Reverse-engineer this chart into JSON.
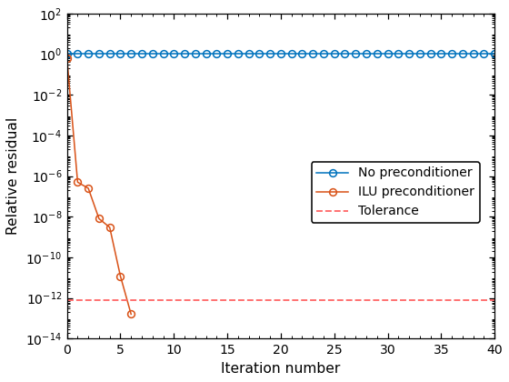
{
  "no_precond_x": [
    0,
    1,
    2,
    3,
    4,
    5,
    6,
    7,
    8,
    9,
    10,
    11,
    12,
    13,
    14,
    15,
    16,
    17,
    18,
    19,
    20,
    21,
    22,
    23,
    24,
    25,
    26,
    27,
    28,
    29,
    30,
    31,
    32,
    33,
    34,
    35,
    36,
    37,
    38,
    39,
    40
  ],
  "no_precond_y": [
    1.0,
    1.0,
    1.0,
    1.0,
    1.0,
    1.0,
    1.0,
    1.0,
    1.0,
    1.0,
    1.0,
    1.0,
    1.0,
    1.0,
    1.0,
    1.0,
    1.0,
    1.0,
    1.0,
    1.0,
    1.0,
    1.0,
    1.0,
    1.0,
    1.0,
    1.0,
    1.0,
    1.0,
    1.0,
    1.0,
    1.0,
    1.0,
    1.0,
    1.0,
    1.0,
    1.0,
    1.0,
    1.0,
    1.0,
    1.0,
    1.0
  ],
  "ilu_x": [
    0,
    1,
    2,
    3,
    4,
    5,
    6
  ],
  "ilu_y": [
    0.65,
    5e-07,
    2.5e-07,
    8e-09,
    3e-09,
    1.2e-11,
    1.6e-13
  ],
  "tolerance": 8e-13,
  "xlim": [
    0,
    40
  ],
  "ylim_bottom": 1e-14,
  "ylim_top": 100.0,
  "xlabel": "Iteration number",
  "ylabel": "Relative residual",
  "no_precond_color": "#0072bd",
  "ilu_color": "#d95319",
  "tolerance_color": "#ff6b6b",
  "legend_labels": [
    "No preconditioner",
    "ILU preconditioner",
    "Tolerance"
  ],
  "bg_color": "#ffffff",
  "figwidth": 5.0,
  "figheight": 3.75
}
